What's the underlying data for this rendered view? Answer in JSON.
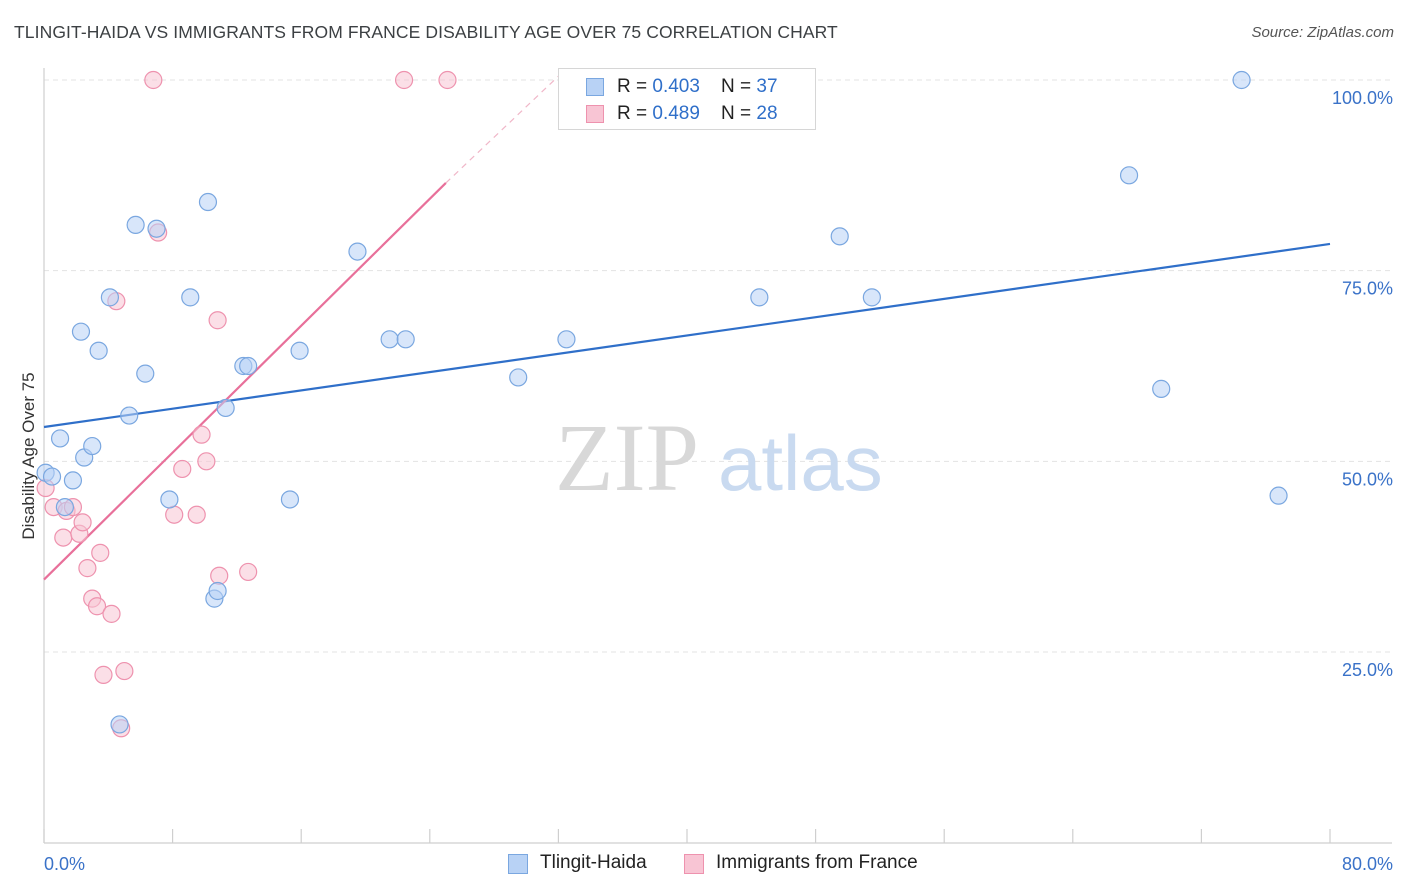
{
  "header": {
    "title": "TLINGIT-HAIDA VS IMMIGRANTS FROM FRANCE DISABILITY AGE OVER 75 CORRELATION CHART",
    "source": "Source: ZipAtlas.com"
  },
  "legend": {
    "series1": {
      "r_label": "R = ",
      "r_value": "0.403",
      "n_label": "N = ",
      "n_value": "37"
    },
    "series2": {
      "r_label": "R = ",
      "r_value": "0.489",
      "n_label": "N = ",
      "n_value": "28"
    }
  },
  "watermark": {
    "part1": "ZIP",
    "part2": "atlas"
  },
  "colors": {
    "blue_fill": "#b8d2f5",
    "blue_stroke": "#7aa7e0",
    "blue_line": "#2f6fc9",
    "pink_fill": "#f8c5d4",
    "pink_stroke": "#ee92ae",
    "pink_line": "#e8709a",
    "grid": "#e3e3e3",
    "tick_label": "#3a72c8"
  },
  "chart_data": {
    "type": "scatter",
    "title": "TLINGIT-HAIDA VS IMMIGRANTS FROM FRANCE DISABILITY AGE OVER 75 CORRELATION CHART",
    "xlabel": "",
    "ylabel": "Disability Age Over 75",
    "xlim": [
      0,
      80
    ],
    "ylim": [
      0,
      100
    ],
    "x_tick_labels": [
      "0.0%",
      "80.0%"
    ],
    "y_ticks": [
      25,
      50,
      75,
      100
    ],
    "y_tick_labels": [
      "25.0%",
      "50.0%",
      "75.0%",
      "100.0%"
    ],
    "grid": true,
    "series": [
      {
        "name": "Tlingit-Haida",
        "color": "blue",
        "r": 0.403,
        "n": 37,
        "trend": {
          "x": [
            0,
            80
          ],
          "y": [
            54.5,
            78.5
          ]
        },
        "points": [
          [
            0.1,
            48.5
          ],
          [
            0.5,
            48.0
          ],
          [
            1.0,
            53.0
          ],
          [
            1.3,
            44.0
          ],
          [
            1.8,
            47.5
          ],
          [
            2.3,
            67.0
          ],
          [
            2.5,
            50.5
          ],
          [
            3.0,
            52.0
          ],
          [
            3.4,
            64.5
          ],
          [
            4.1,
            71.5
          ],
          [
            4.7,
            15.5
          ],
          [
            5.3,
            56.0
          ],
          [
            5.7,
            81.0
          ],
          [
            6.3,
            61.5
          ],
          [
            7.0,
            80.5
          ],
          [
            7.8,
            45.0
          ],
          [
            9.1,
            71.5
          ],
          [
            10.2,
            84.0
          ],
          [
            10.6,
            32.0
          ],
          [
            10.8,
            33.0
          ],
          [
            11.3,
            57.0
          ],
          [
            12.4,
            62.5
          ],
          [
            12.7,
            62.5
          ],
          [
            15.3,
            45.0
          ],
          [
            15.9,
            64.5
          ],
          [
            19.5,
            77.5
          ],
          [
            21.5,
            66.0
          ],
          [
            22.5,
            66.0
          ],
          [
            29.5,
            61.0
          ],
          [
            32.5,
            66.0
          ],
          [
            44.5,
            71.5
          ],
          [
            49.5,
            79.5
          ],
          [
            51.5,
            71.5
          ],
          [
            67.5,
            87.5
          ],
          [
            69.5,
            59.5
          ],
          [
            74.5,
            100.0
          ],
          [
            76.8,
            45.5
          ]
        ]
      },
      {
        "name": "Immigrants from France",
        "color": "pink",
        "r": 0.489,
        "n": 28,
        "trend": {
          "x": [
            0,
            25
          ],
          "y": [
            34.5,
            86.5
          ]
        },
        "trend_dashed": {
          "x": [
            25,
            32
          ],
          "y": [
            86.5,
            100.5
          ]
        },
        "points": [
          [
            0.1,
            46.5
          ],
          [
            0.6,
            44.0
          ],
          [
            1.2,
            40.0
          ],
          [
            1.4,
            43.5
          ],
          [
            1.8,
            44.0
          ],
          [
            2.2,
            40.5
          ],
          [
            2.4,
            42.0
          ],
          [
            2.7,
            36.0
          ],
          [
            3.0,
            32.0
          ],
          [
            3.3,
            31.0
          ],
          [
            3.5,
            38.0
          ],
          [
            3.7,
            22.0
          ],
          [
            4.2,
            30.0
          ],
          [
            4.5,
            71.0
          ],
          [
            4.8,
            15.0
          ],
          [
            5.0,
            22.5
          ],
          [
            6.8,
            100.0
          ],
          [
            7.1,
            80.0
          ],
          [
            8.1,
            43.0
          ],
          [
            8.6,
            49.0
          ],
          [
            9.5,
            43.0
          ],
          [
            9.8,
            53.5
          ],
          [
            10.1,
            50.0
          ],
          [
            10.8,
            68.5
          ],
          [
            10.9,
            35.0
          ],
          [
            12.7,
            35.5
          ],
          [
            22.4,
            100.0
          ],
          [
            25.1,
            100.0
          ]
        ]
      }
    ]
  },
  "bottom_legend": {
    "items": [
      "Tlingit-Haida",
      "Immigrants from France"
    ]
  }
}
